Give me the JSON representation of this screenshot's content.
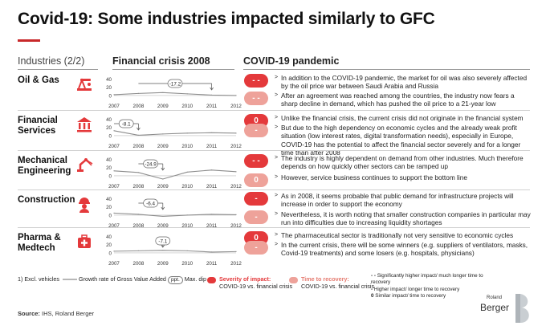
{
  "title": "Covid-19: Some industries impacted similarly to GFC",
  "headers": {
    "industries": "Industries (2/2)",
    "financial_crisis": "Financial crisis 2008",
    "covid": "COVID-19 pandemic"
  },
  "chart_axis": {
    "x_ticks": [
      "2007",
      "2008",
      "2009",
      "2010",
      "2011",
      "2012"
    ],
    "y_ticks": [
      "40",
      "20",
      "0"
    ],
    "ylim": [
      -10,
      45
    ]
  },
  "rows": [
    {
      "name_line1": "Oil & Gas",
      "name_line2": "",
      "icon": "oil-pump-icon",
      "dip_label": "-17.2",
      "chart_data": {
        "type": "line",
        "x": [
          2007,
          2008,
          2009,
          2010,
          2011,
          2012
        ],
        "values": [
          2,
          5,
          7,
          4,
          1,
          0
        ],
        "max_dip": -17.2
      },
      "bullets": [
        {
          "severity": "red",
          "badge": "- -",
          "text": "In addition to the COVID-19 pandemic, the market for oil was also severely affected by the oil price war between Saudi Arabia and Russia"
        },
        {
          "severity": "salmon",
          "badge": "- -",
          "text": "After an agreement was reached among the countries, the industry now fears a sharp decline in demand, which has pushed the oil price to a 21-year low"
        }
      ]
    },
    {
      "name_line1": "Financial",
      "name_line2": "Services",
      "icon": "bank-icon",
      "dip_label": "-8.1",
      "chart_data": {
        "type": "line",
        "x": [
          2007,
          2008,
          2009,
          2010,
          2011,
          2012
        ],
        "values": [
          12,
          1,
          4,
          6,
          7,
          6
        ],
        "max_dip": -8.1
      },
      "bullets": [
        {
          "severity": "red",
          "badge": "0",
          "text": "Unlike the financial crisis, the current crisis did not originate in the financial system"
        },
        {
          "severity": "salmon",
          "badge": "-",
          "text": "But due to the high dependency on economic cycles and the already weak profit situation (low interest rates, digital transformation needs), especially in Europe, COVID-19 has the potential to affect the financial sector severely and for a longer time than after 2008"
        }
      ]
    },
    {
      "name_line1": "Mechanical",
      "name_line2": "Engineering",
      "icon": "robot-arm-icon",
      "dip_label": "-24.9",
      "chart_data": {
        "type": "line",
        "x": [
          2007,
          2008,
          2009,
          2010,
          2011,
          2012
        ],
        "values": [
          12,
          8,
          -8,
          9,
          14,
          10
        ],
        "max_dip": -24.9
      },
      "bullets": [
        {
          "severity": "red",
          "badge": "- -",
          "text": "The industry is highly dependent on demand from other industries. Much therefore depends on how quickly other sectors can be ramped up"
        },
        {
          "severity": "salmon",
          "badge": "0",
          "text": "However, service business continues to support the bottom line"
        }
      ]
    },
    {
      "name_line1": "Construction",
      "name_line2": "",
      "icon": "hard-hat-worker-icon",
      "dip_label": "-6.4",
      "chart_data": {
        "type": "line",
        "x": [
          2007,
          2008,
          2009,
          2010,
          2011,
          2012
        ],
        "values": [
          5,
          2,
          -3,
          0,
          2,
          1
        ],
        "max_dip": -6.4
      },
      "bullets": [
        {
          "severity": "red",
          "badge": "-",
          "text": "As in 2008, it seems probable that public demand for infrastructure projects will increase in order to support the economy"
        },
        {
          "severity": "salmon",
          "badge": "-",
          "text": "Nevertheless, it is worth noting that smaller construction companies in particular may run into difficulties due to increasing liquidity shortages"
        }
      ]
    },
    {
      "name_line1": "Pharma &",
      "name_line2": "Medtech",
      "icon": "first-aid-kit-icon",
      "dip_label": "-7.1",
      "chart_data": {
        "type": "line",
        "x": [
          2007,
          2008,
          2009,
          2010,
          2011,
          2012
        ],
        "values": [
          4,
          5,
          6,
          5,
          2,
          3
        ],
        "max_dip": -7.1
      },
      "bullets": [
        {
          "severity": "red",
          "badge": "0",
          "text": "The pharmaceutical sector is traditionally not very sensitive to economic cycles"
        },
        {
          "severity": "salmon",
          "badge": "-",
          "text": "In the current crisis, there will be some winners (e.g. suppliers of ventilators, masks, Covid-19 treatments) and some losers (e.g. hospitals, physicians)"
        }
      ]
    }
  ],
  "legend": {
    "footnote": "1) Excl. vehicles",
    "growth_label": "Growth rate of Gross Value Added",
    "dip_box": "ppt.",
    "max_dip": "Max. dip",
    "severity_title": "Severity of impact:",
    "severity_sub": "COVID-19 vs. financial crisis",
    "recovery_title": "Time to recovery:",
    "recovery_sub": "COVID-19 vs. financial crisis",
    "key": [
      {
        "symbol": "- -",
        "text": "Significantly higher impact/ much longer time to recovery"
      },
      {
        "symbol": "-",
        "text": "Higher impact/ longer time to recovery"
      },
      {
        "symbol": "0",
        "text": "Similar impact/ time to recovery"
      }
    ]
  },
  "source": {
    "label": "Source:",
    "text": "IHS, Roland Berger"
  },
  "logo": {
    "line1": "Roland",
    "line2": "Berger"
  },
  "colors": {
    "accent_red": "#e4393b",
    "salmon": "#eea29a",
    "line_gray": "#8c8c8c"
  }
}
